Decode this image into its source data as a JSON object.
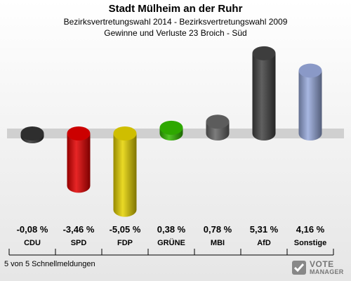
{
  "header": {
    "title": "Stadt Mülheim an der Ruhr",
    "subtitle": "Bezirksvertretungswahl 2014 - Bezirksvertretungswahl 2009",
    "subtitle2": "Gewinne und Verluste 23 Broich - Süd"
  },
  "chart_data": {
    "type": "bar",
    "categories": [
      "CDU",
      "SPD",
      "FDP",
      "GRÜNE",
      "MBI",
      "AfD",
      "Sonstige"
    ],
    "values": [
      -0.08,
      -3.46,
      -5.05,
      0.38,
      0.78,
      5.31,
      4.16
    ],
    "value_labels": [
      "-0,08 %",
      "-3,46 %",
      "-5,05 %",
      "0,38 %",
      "0,78 %",
      "5,31 %",
      "4,16 %"
    ],
    "colors": [
      "#333333",
      "#e30000",
      "#e6d300",
      "#33bb00",
      "#666666",
      "#444444",
      "#99aadd"
    ],
    "ylim": [
      -5.05,
      5.31
    ]
  },
  "footer": {
    "note": "5 von 5 Schnellmeldungen"
  },
  "brand": {
    "line1": "VOTE",
    "line2": "MANAGER"
  }
}
